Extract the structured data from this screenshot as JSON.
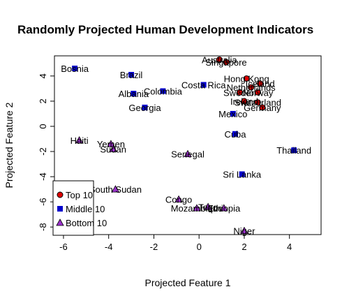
{
  "chart_data": {
    "type": "scatter",
    "title": "Randomly Projected Human Development Indicators",
    "xlabel": "Projected Feature 1",
    "ylabel": "Projected Feature 2",
    "xlim": [
      -6.4,
      5.4
    ],
    "ylim": [
      -8.6,
      5.6
    ],
    "xticks": [
      -6,
      -4,
      -2,
      0,
      2,
      4
    ],
    "yticks": [
      -8,
      -6,
      -4,
      -2,
      0,
      2,
      4
    ],
    "legend": {
      "position": "bottom-left",
      "entries": [
        {
          "label": "Top 10",
          "group": "top",
          "marker": "circle",
          "color": "#dd0000"
        },
        {
          "label": "Middle 10",
          "group": "middle",
          "marker": "square",
          "color": "#0000cc"
        },
        {
          "label": "Bottom 10",
          "group": "bottom",
          "marker": "triangle",
          "color": "#9b30cc"
        }
      ]
    },
    "series": [
      {
        "group": "top",
        "points": [
          {
            "label": "Australia",
            "x": 0.9,
            "y": 5.3
          },
          {
            "label": "Singapore",
            "x": 1.2,
            "y": 5.1
          },
          {
            "label": "Hong Kong",
            "x": 2.1,
            "y": 3.8
          },
          {
            "label": "Iceland",
            "x": 2.7,
            "y": 3.4
          },
          {
            "label": "Netherlands",
            "x": 2.3,
            "y": 3.1
          },
          {
            "label": "Sweden",
            "x": 1.8,
            "y": 2.7
          },
          {
            "label": "Norway",
            "x": 2.6,
            "y": 2.7
          },
          {
            "label": "Ireland",
            "x": 2.0,
            "y": 2.0
          },
          {
            "label": "Switzerland",
            "x": 2.6,
            "y": 1.9
          },
          {
            "label": "Germany",
            "x": 2.8,
            "y": 1.5
          }
        ]
      },
      {
        "group": "middle",
        "points": [
          {
            "label": "Bosnia",
            "x": -5.5,
            "y": 4.6
          },
          {
            "label": "Brazil",
            "x": -3.0,
            "y": 4.1
          },
          {
            "label": "Albania",
            "x": -2.9,
            "y": 2.6
          },
          {
            "label": "Colombia",
            "x": -1.6,
            "y": 2.8
          },
          {
            "label": "Georgia",
            "x": -2.4,
            "y": 1.5
          },
          {
            "label": "Costa Rica",
            "x": 0.2,
            "y": 3.3
          },
          {
            "label": "Mexico",
            "x": 1.5,
            "y": 1.0
          },
          {
            "label": "Cuba",
            "x": 1.6,
            "y": -0.6
          },
          {
            "label": "Thailand",
            "x": 4.2,
            "y": -1.9
          },
          {
            "label": "Sri Lanka",
            "x": 1.9,
            "y": -3.8
          }
        ]
      },
      {
        "group": "bottom",
        "points": [
          {
            "label": "Haiti",
            "x": -5.3,
            "y": -1.1
          },
          {
            "label": "Yemen",
            "x": -3.9,
            "y": -1.4
          },
          {
            "label": "Sudan",
            "x": -3.8,
            "y": -1.8
          },
          {
            "label": "Senegal",
            "x": -0.5,
            "y": -2.2
          },
          {
            "label": "South Sudan",
            "x": -3.7,
            "y": -5.0
          },
          {
            "label": "Congo",
            "x": -0.9,
            "y": -5.8
          },
          {
            "label": "Mozambique",
            "x": -0.1,
            "y": -6.5
          },
          {
            "label": "Togo",
            "x": 0.4,
            "y": -6.4
          },
          {
            "label": "Ethiopia",
            "x": 1.1,
            "y": -6.5
          },
          {
            "label": "Niger",
            "x": 2.0,
            "y": -8.3
          }
        ]
      }
    ]
  }
}
